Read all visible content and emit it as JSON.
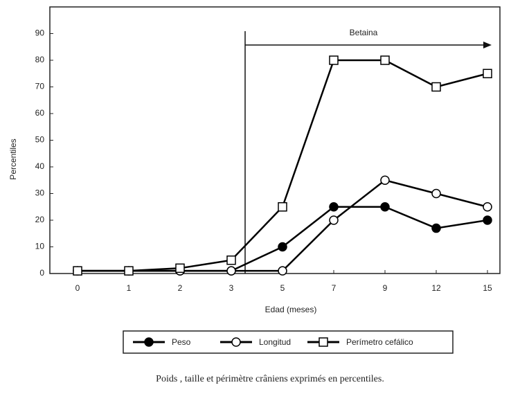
{
  "chart_data": {
    "type": "line",
    "annotation": "Betaina",
    "xlabel": "Edad (meses)",
    "ylabel": "Percentiles",
    "caption": "Poids , taille et périmètre crâniens exprimés en percentiles.",
    "categories": [
      "0",
      "1",
      "2",
      "3",
      "5",
      "7",
      "9",
      "12",
      "15"
    ],
    "series": [
      {
        "name": "Peso",
        "color": "#000000",
        "marker": "filled-circle",
        "values": [
          1,
          1,
          1,
          1,
          10,
          25,
          25,
          17,
          20
        ]
      },
      {
        "name": "Longitud",
        "color": "#000000",
        "marker": "open-circle",
        "values": [
          1,
          1,
          1,
          1,
          1,
          20,
          35,
          30,
          25
        ]
      },
      {
        "name": "Perímetro cefálico",
        "color": "#000000",
        "marker": "open-square",
        "values": [
          1,
          1,
          2,
          5,
          25,
          80,
          80,
          70,
          75
        ]
      }
    ],
    "ylim": [
      0,
      100
    ],
    "yticks": [
      0,
      10,
      20,
      30,
      40,
      50,
      60,
      70,
      80,
      90
    ],
    "grid": false
  }
}
